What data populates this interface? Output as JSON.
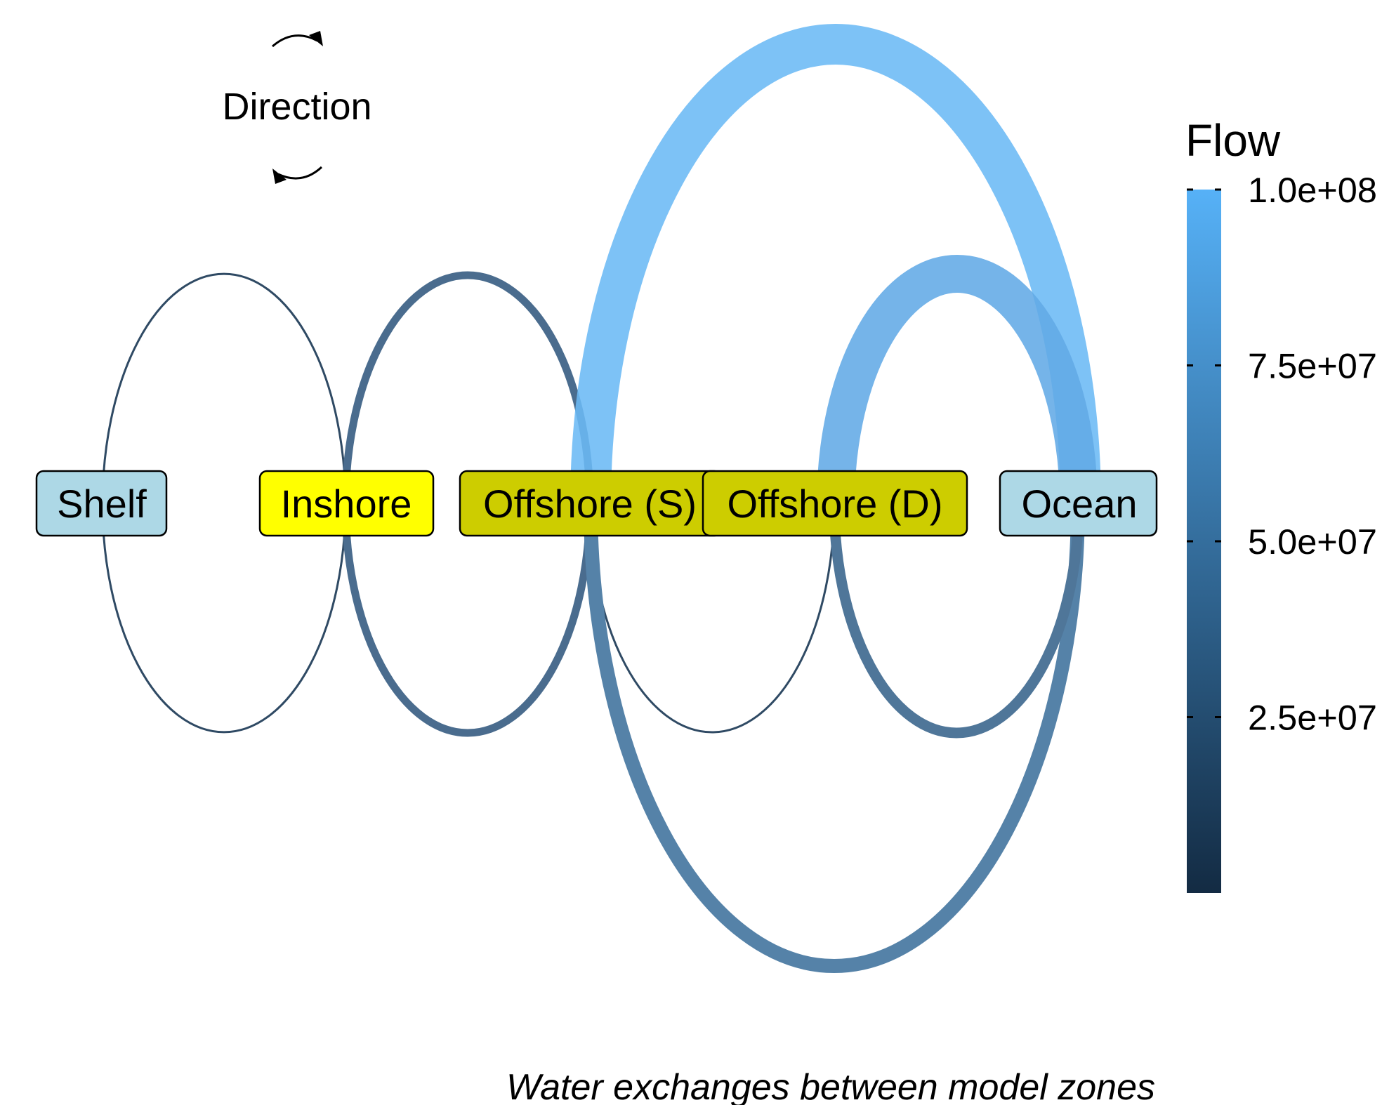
{
  "direction_legend": {
    "title": "Direction",
    "arrows": [
      "clockwise-arrow-icon",
      "counterclockwise-arrow-icon"
    ]
  },
  "zones": [
    {
      "id": "shelf",
      "label": "Shelf",
      "color": "#ADD8E6"
    },
    {
      "id": "inshore",
      "label": "Inshore",
      "color": "#FFFF00"
    },
    {
      "id": "offshore_s",
      "label": "Offshore (S)",
      "color": "#CDCD00"
    },
    {
      "id": "offshore_d",
      "label": "Offshore (D)",
      "color": "#CDCD00"
    },
    {
      "id": "ocean",
      "label": "Ocean",
      "color": "#ADD8E6"
    }
  ],
  "flows": [
    {
      "name": "shelf-inshore-upper",
      "from": "Shelf",
      "to": "Inshore",
      "value": 1000000
    },
    {
      "name": "shelf-inshore-lower",
      "from": "Inshore",
      "to": "Shelf",
      "value": 1000000
    },
    {
      "name": "inshore-offshore-s-upper",
      "from": "Inshore",
      "to": "Offshore (S)",
      "value": 40000000
    },
    {
      "name": "inshore-offshore-s-lower",
      "from": "Offshore (S)",
      "to": "Inshore",
      "value": 40000000
    },
    {
      "name": "offshore-s-offshore-d-lower",
      "from": "Offshore (D)",
      "to": "Offshore (S)",
      "value": 1000000
    },
    {
      "name": "offshore-s-ocean-upper",
      "from": "Offshore (S)",
      "to": "Ocean",
      "value": 95000000
    },
    {
      "name": "offshore-s-ocean-lower",
      "from": "Ocean",
      "to": "Offshore (S)",
      "value": 60000000
    },
    {
      "name": "offshore-d-ocean-upper",
      "from": "Offshore (D)",
      "to": "Ocean",
      "value": 85000000
    },
    {
      "name": "offshore-d-ocean-lower",
      "from": "Ocean",
      "to": "Offshore (D)",
      "value": 50000000
    }
  ],
  "flow_legend": {
    "title": "Flow",
    "ticks": [
      {
        "value": 25000000,
        "label": "2.5e+07"
      },
      {
        "value": 50000000,
        "label": "5.0e+07"
      },
      {
        "value": 75000000,
        "label": "7.5e+07"
      },
      {
        "value": 100000000,
        "label": "1.0e+08"
      }
    ],
    "range": [
      0,
      100000000
    ],
    "colors": {
      "low": "#132B43",
      "high": "#56B1F7"
    }
  },
  "caption": "Water exchanges between model zones"
}
